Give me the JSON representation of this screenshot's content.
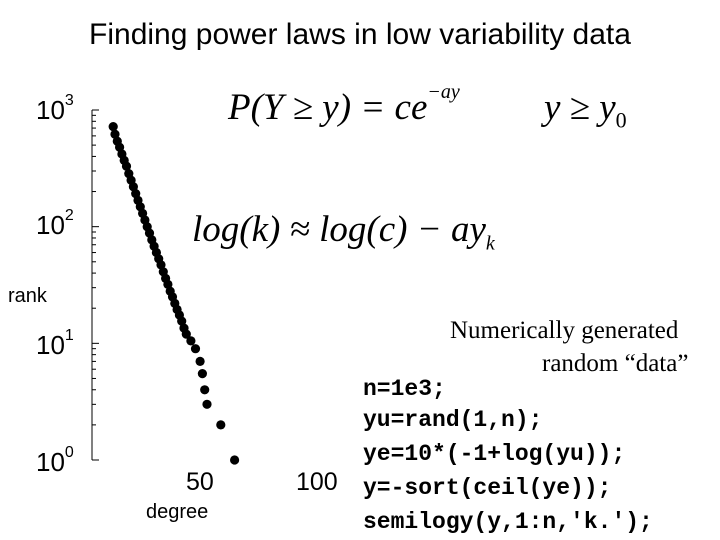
{
  "title": "Finding power laws in low variability data",
  "chart_data": {
    "type": "scatter",
    "title": "Finding power laws in low variability data",
    "xlabel": "degree",
    "ylabel": "rank",
    "xscale": "linear",
    "yscale": "log",
    "xlim": [
      0,
      100
    ],
    "ylim": [
      1,
      1000
    ],
    "xticks": [
      {
        "value": 50,
        "label": "50"
      },
      {
        "value": 100,
        "label": "100"
      }
    ],
    "yticks": [
      {
        "value": 1,
        "base": "10",
        "exp": "0"
      },
      {
        "value": 10,
        "base": "10",
        "exp": "1"
      },
      {
        "value": 100,
        "base": "10",
        "exp": "2"
      },
      {
        "value": 1000,
        "base": "10",
        "exp": "3"
      }
    ],
    "marker": "filled-circle",
    "marker_color": "#000000",
    "series": [
      {
        "points": [
          [
            9.2,
            720
          ],
          [
            10,
            620
          ],
          [
            11,
            540
          ],
          [
            12,
            480
          ],
          [
            13,
            420
          ],
          [
            14,
            370
          ],
          [
            15,
            330
          ],
          [
            16,
            285
          ],
          [
            17,
            250
          ],
          [
            18,
            220
          ],
          [
            19,
            192
          ],
          [
            20,
            168
          ],
          [
            21,
            148
          ],
          [
            22,
            130
          ],
          [
            23,
            114
          ],
          [
            24,
            100
          ],
          [
            25,
            88
          ],
          [
            26,
            77
          ],
          [
            27,
            68
          ],
          [
            28,
            60
          ],
          [
            29,
            53
          ],
          [
            30,
            47
          ],
          [
            31,
            41
          ],
          [
            32,
            36
          ],
          [
            33,
            32
          ],
          [
            34,
            28
          ],
          [
            35,
            25
          ],
          [
            36,
            22
          ],
          [
            37,
            19.5
          ],
          [
            38,
            17.5
          ],
          [
            39,
            15.5
          ],
          [
            40,
            13.5
          ],
          [
            41,
            12
          ],
          [
            43,
            10.5
          ],
          [
            45,
            9
          ],
          [
            47,
            7
          ],
          [
            48,
            5.5
          ],
          [
            49,
            4
          ],
          [
            50,
            3
          ],
          [
            56,
            2
          ],
          [
            62,
            1
          ]
        ]
      }
    ]
  },
  "formulas": {
    "survival": {
      "lhs": "P(Y ≥ y) = ce",
      "exponent": "−ay",
      "condition": "y ≥ y",
      "condition_sub": "0"
    },
    "log_form": {
      "text": "log(k) ≈ log(c) − ay",
      "sub": "k"
    }
  },
  "note": {
    "line1": "Numerically generated",
    "line2": "random “data”"
  },
  "code_lines": [
    "n=1e3;",
    "yu=rand(1,n);",
    "ye=10*(-1+log(yu));",
    "y=-sort(ceil(ye));",
    "semilogy(y,1:n,'k.');"
  ]
}
